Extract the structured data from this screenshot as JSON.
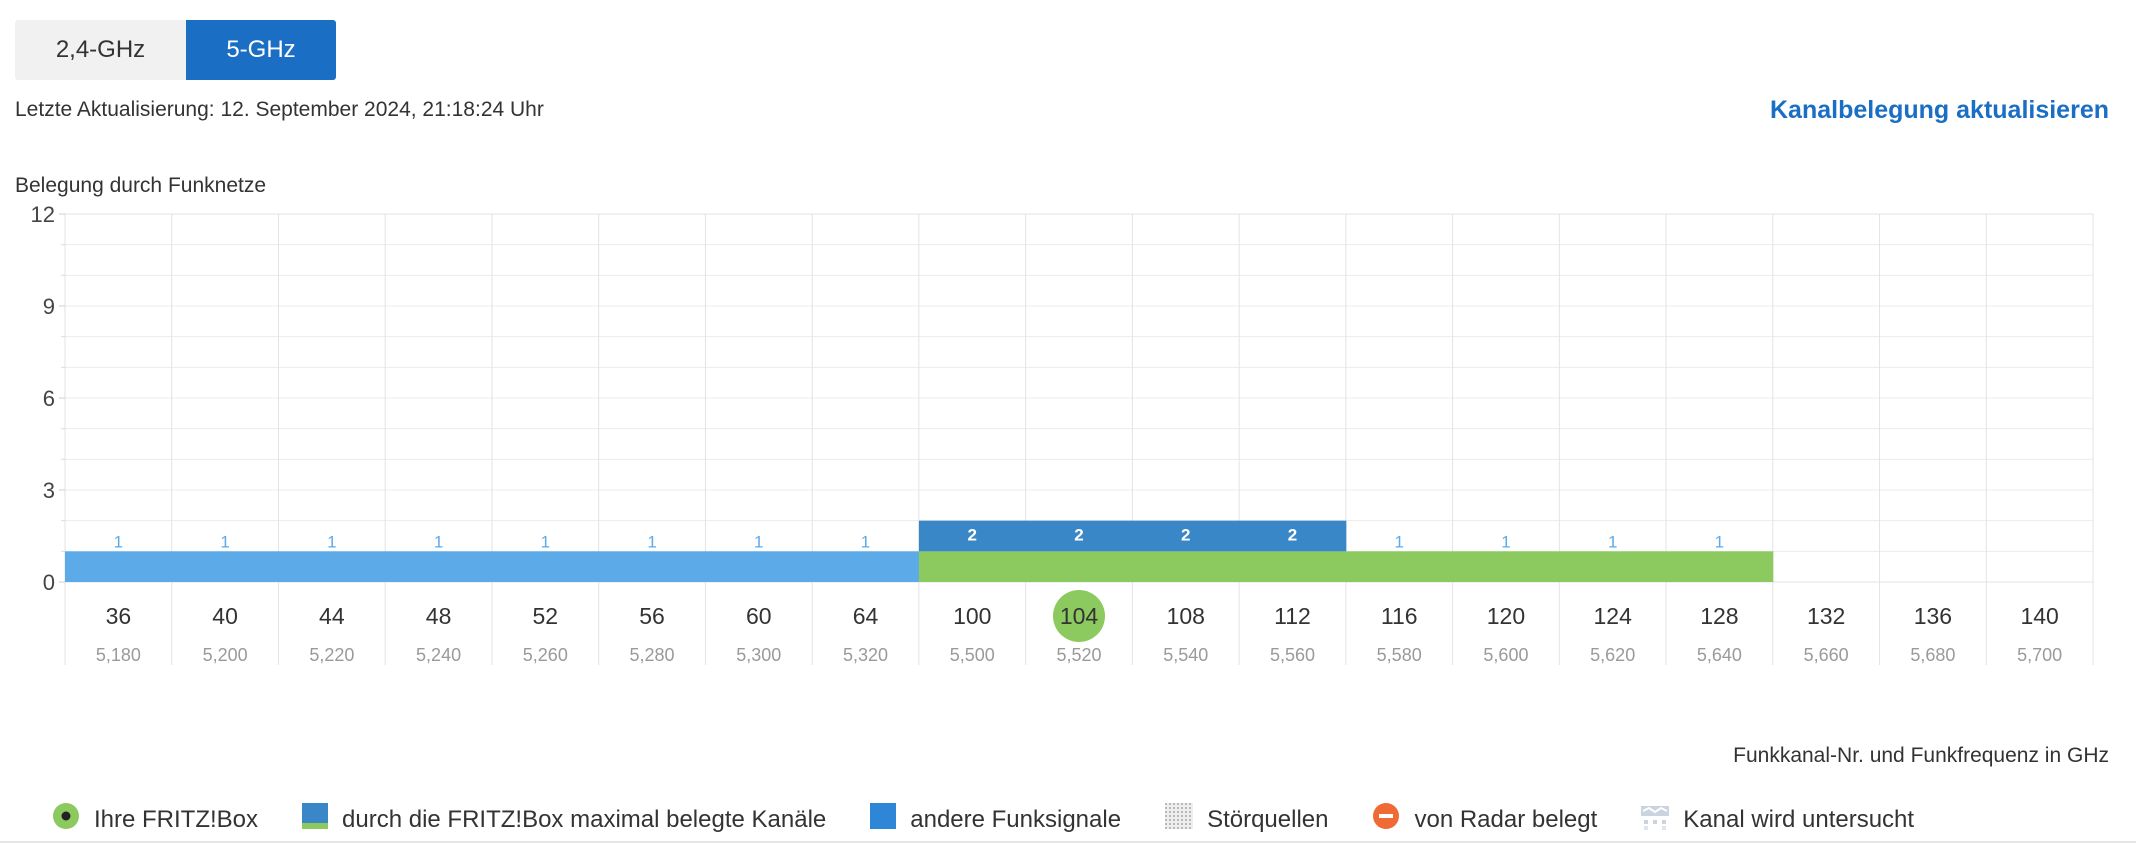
{
  "tabs": [
    {
      "label": "2,4-GHz",
      "active": false
    },
    {
      "label": "5-GHz",
      "active": true
    }
  ],
  "last_update": "Letzte Aktualisierung: 12. September 2024, 21:18:24 Uhr",
  "refresh_link": "Kanalbelegung aktualisieren",
  "chart_title": "Belegung durch Funknetze",
  "x_caption": "Funkkanal-Nr. und Funkfrequenz in GHz",
  "colors": {
    "own_channels": "#8cc95e",
    "other_signals": "#5daae8",
    "other_signals_dark": "#3a87c8",
    "accent": "#1a6fc4",
    "radar": "#f06a35"
  },
  "legend": [
    {
      "label": "Ihre FRITZ!Box",
      "icon": "fritzbox-dot-icon"
    },
    {
      "label": "durch die FRITZ!Box maximal belegte Kanäle",
      "icon": "max-channels-icon"
    },
    {
      "label": "andere Funksignale",
      "icon": "other-signals-icon"
    },
    {
      "label": "Störquellen",
      "icon": "interference-icon"
    },
    {
      "label": "von Radar belegt",
      "icon": "radar-icon"
    },
    {
      "label": "Kanal wird untersucht",
      "icon": "channel-scan-icon"
    }
  ],
  "chart_data": {
    "type": "bar",
    "title": "Belegung durch Funknetze",
    "xlabel": "Funkkanal-Nr. und Funkfrequenz in GHz",
    "ylabel": "",
    "ylim": [
      0,
      12
    ],
    "yticks": [
      0,
      3,
      6,
      9,
      12
    ],
    "grid": true,
    "categories": [
      "36",
      "40",
      "44",
      "48",
      "52",
      "56",
      "60",
      "64",
      "100",
      "104",
      "108",
      "112",
      "116",
      "120",
      "124",
      "128",
      "132",
      "136",
      "140"
    ],
    "frequencies": [
      "5,180",
      "5,200",
      "5,220",
      "5,240",
      "5,260",
      "5,280",
      "5,300",
      "5,320",
      "5,500",
      "5,520",
      "5,540",
      "5,560",
      "5,580",
      "5,600",
      "5,620",
      "5,640",
      "5,660",
      "5,680",
      "5,700"
    ],
    "selected_channel": "104",
    "fritzbox_max_channels": [
      "100",
      "104",
      "108",
      "112",
      "116",
      "120",
      "124",
      "128"
    ],
    "series": [
      {
        "values": [
          1,
          1,
          1,
          1,
          1,
          1,
          1,
          1,
          2,
          2,
          2,
          2,
          1,
          1,
          1,
          1,
          0,
          0,
          0
        ]
      }
    ]
  }
}
